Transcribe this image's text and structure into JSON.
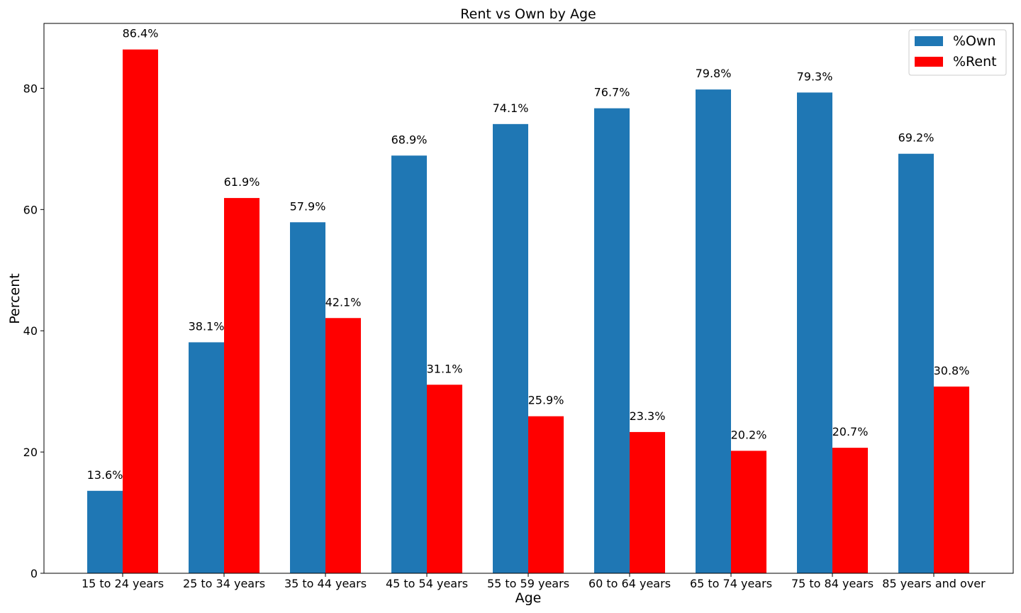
{
  "chart_data": {
    "type": "bar",
    "title": "Rent vs Own by Age",
    "xlabel": "Age",
    "ylabel": "Percent",
    "ylim": [
      0,
      90.7
    ],
    "yticks": [
      "0",
      "20",
      "40",
      "60",
      "80"
    ],
    "categories": [
      "15 to 24 years",
      "25 to 34 years",
      "35 to 44 years",
      "45 to 54 years",
      "55 to 59 years",
      "60 to 64 years",
      "65 to 74 years",
      "75 to 84 years",
      "85 years and over"
    ],
    "series": [
      {
        "name": "%Own",
        "color": "#1f77b4",
        "values": [
          13.6,
          38.1,
          57.9,
          68.9,
          74.1,
          76.7,
          79.8,
          79.3,
          69.2
        ],
        "labels": [
          "13.6%",
          "38.1%",
          "57.9%",
          "68.9%",
          "74.1%",
          "76.7%",
          "79.8%",
          "79.3%",
          "69.2%"
        ]
      },
      {
        "name": "%Rent",
        "color": "#ff0000",
        "values": [
          86.4,
          61.9,
          42.1,
          31.1,
          25.9,
          23.3,
          20.2,
          20.7,
          30.8
        ],
        "labels": [
          "86.4%",
          "61.9%",
          "42.1%",
          "31.1%",
          "25.9%",
          "23.3%",
          "20.2%",
          "20.7%",
          "30.8%"
        ]
      }
    ],
    "legend": "top-right",
    "grid": false
  }
}
